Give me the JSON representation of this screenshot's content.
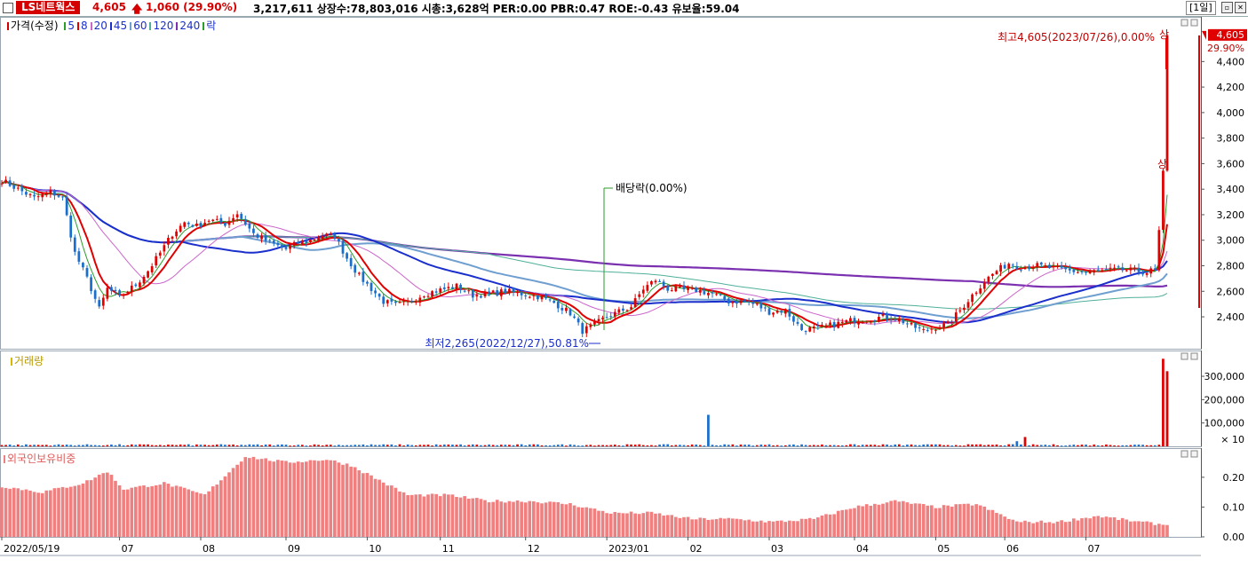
{
  "header": {
    "stock_name": "LS네트웍스",
    "price": "4,605",
    "arrow": "🡅",
    "change": "1,060 (29.90%)",
    "stats": "3,217,611  상장수:78,803,016 시총:3,628억  PER:0.00 PBR:0.47 ROE:-0.43 유보율:59.04",
    "period": "[1일]"
  },
  "legend_price": {
    "title": "가격(수정)",
    "items": [
      {
        "label": "5",
        "color": "#2a9d2a"
      },
      {
        "label": "8",
        "color": "#e00000"
      },
      {
        "label": "20",
        "color": "#cc66cc"
      },
      {
        "label": "45",
        "color": "#1a2fcc"
      },
      {
        "label": "60",
        "color": "#6f9fd0"
      },
      {
        "label": "120",
        "color": "#4fb09a"
      },
      {
        "label": "240",
        "color": "#7b30b0"
      },
      {
        "label": "락",
        "color": "#2a9d2a"
      }
    ]
  },
  "legend_volume": {
    "title": "거래량",
    "color": "#d8b800"
  },
  "legend_foreign": {
    "title": "외국인보유비중",
    "color": "#f08080"
  },
  "annotations": {
    "high": "최고4,605(2023/07/26),0.00%",
    "low": "최저2,265(2022/12/27),50.81%",
    "dividend": "배당락(0.00%)",
    "limit_up": "상"
  },
  "current_price_tag": {
    "price": "4,605",
    "pct": "29.90%"
  },
  "chart_data": [
    {
      "type": "candlestick",
      "name": "가격(수정)",
      "y_ticks": [
        "2,400",
        "2,600",
        "2,800",
        "3,000",
        "3,200",
        "3,400",
        "3,600",
        "3,800",
        "4,000",
        "4,200",
        "4,400"
      ],
      "ylim": [
        2150,
        4750
      ],
      "x_labels": [
        "2022/05/19",
        "07",
        "08",
        "09",
        "10",
        "11",
        "12",
        "2023/01",
        "02",
        "03",
        "04",
        "05",
        "06",
        "07"
      ],
      "x_label_index": [
        0,
        29,
        49,
        70,
        90,
        108,
        129,
        149,
        169,
        189,
        210,
        230,
        247,
        267
      ],
      "close_trend": [
        [
          0,
          3470
        ],
        [
          4,
          3400
        ],
        [
          8,
          3330
        ],
        [
          12,
          3380
        ],
        [
          15,
          3330
        ],
        [
          18,
          2900
        ],
        [
          21,
          2700
        ],
        [
          24,
          2460
        ],
        [
          26,
          2620
        ],
        [
          29,
          2560
        ],
        [
          33,
          2650
        ],
        [
          36,
          2760
        ],
        [
          39,
          2900
        ],
        [
          42,
          3050
        ],
        [
          45,
          3140
        ],
        [
          48,
          3110
        ],
        [
          51,
          3160
        ],
        [
          55,
          3130
        ],
        [
          58,
          3210
        ],
        [
          62,
          3050
        ],
        [
          66,
          2980
        ],
        [
          70,
          2930
        ],
        [
          73,
          2980
        ],
        [
          76,
          3000
        ],
        [
          79,
          3040
        ],
        [
          82,
          3030
        ],
        [
          85,
          2860
        ],
        [
          88,
          2720
        ],
        [
          91,
          2620
        ],
        [
          94,
          2520
        ],
        [
          97,
          2490
        ],
        [
          100,
          2510
        ],
        [
          104,
          2580
        ],
        [
          108,
          2610
        ],
        [
          112,
          2640
        ],
        [
          116,
          2570
        ],
        [
          120,
          2580
        ],
        [
          124,
          2600
        ],
        [
          128,
          2580
        ],
        [
          132,
          2560
        ],
        [
          136,
          2510
        ],
        [
          140,
          2430
        ],
        [
          143,
          2290
        ],
        [
          146,
          2340
        ],
        [
          149,
          2400
        ],
        [
          152,
          2440
        ],
        [
          155,
          2480
        ],
        [
          158,
          2620
        ],
        [
          161,
          2690
        ],
        [
          164,
          2620
        ],
        [
          168,
          2610
        ],
        [
          171,
          2610
        ],
        [
          175,
          2580
        ],
        [
          179,
          2520
        ],
        [
          183,
          2520
        ],
        [
          186,
          2490
        ],
        [
          189,
          2440
        ],
        [
          193,
          2450
        ],
        [
          197,
          2300
        ],
        [
          201,
          2310
        ],
        [
          205,
          2340
        ],
        [
          209,
          2370
        ],
        [
          213,
          2380
        ],
        [
          217,
          2400
        ],
        [
          221,
          2380
        ],
        [
          224,
          2330
        ],
        [
          227,
          2290
        ],
        [
          230,
          2320
        ],
        [
          233,
          2340
        ],
        [
          236,
          2450
        ],
        [
          239,
          2570
        ],
        [
          242,
          2680
        ],
        [
          245,
          2760
        ],
        [
          248,
          2820
        ],
        [
          251,
          2790
        ],
        [
          255,
          2800
        ],
        [
          259,
          2780
        ],
        [
          263,
          2760
        ],
        [
          267,
          2750
        ],
        [
          271,
          2760
        ],
        [
          275,
          2770
        ],
        [
          279,
          2760
        ],
        [
          282,
          2750
        ],
        [
          284,
          2770
        ],
        [
          285,
          3080
        ],
        [
          286,
          3545
        ],
        [
          287,
          4605
        ]
      ],
      "last_index": 287
    },
    {
      "type": "bar",
      "name": "거래량",
      "y_ticks": [
        "100,000",
        "200,000",
        "300,000"
      ],
      "unit_label": "× 10",
      "ylim": [
        0,
        380000
      ],
      "baseline": 6000,
      "spikes": [
        [
          174,
          135000
        ],
        [
          250,
          22000
        ],
        [
          252,
          40000
        ],
        [
          286,
          375000
        ],
        [
          287,
          321761
        ]
      ]
    },
    {
      "type": "bar",
      "name": "외국인보유비중",
      "y_ticks": [
        "0.00",
        "0.10",
        "0.20"
      ],
      "ylim": [
        0,
        0.28
      ],
      "trend": [
        [
          0,
          0.17
        ],
        [
          10,
          0.15
        ],
        [
          20,
          0.18
        ],
        [
          26,
          0.22
        ],
        [
          30,
          0.16
        ],
        [
          40,
          0.18
        ],
        [
          50,
          0.14
        ],
        [
          60,
          0.27
        ],
        [
          70,
          0.25
        ],
        [
          80,
          0.26
        ],
        [
          86,
          0.24
        ],
        [
          93,
          0.19
        ],
        [
          100,
          0.14
        ],
        [
          110,
          0.14
        ],
        [
          120,
          0.12
        ],
        [
          130,
          0.12
        ],
        [
          140,
          0.11
        ],
        [
          150,
          0.08
        ],
        [
          160,
          0.08
        ],
        [
          170,
          0.06
        ],
        [
          180,
          0.06
        ],
        [
          190,
          0.05
        ],
        [
          200,
          0.06
        ],
        [
          210,
          0.1
        ],
        [
          220,
          0.12
        ],
        [
          230,
          0.1
        ],
        [
          240,
          0.11
        ],
        [
          250,
          0.05
        ],
        [
          260,
          0.05
        ],
        [
          270,
          0.07
        ],
        [
          280,
          0.05
        ],
        [
          287,
          0.04
        ]
      ]
    }
  ]
}
